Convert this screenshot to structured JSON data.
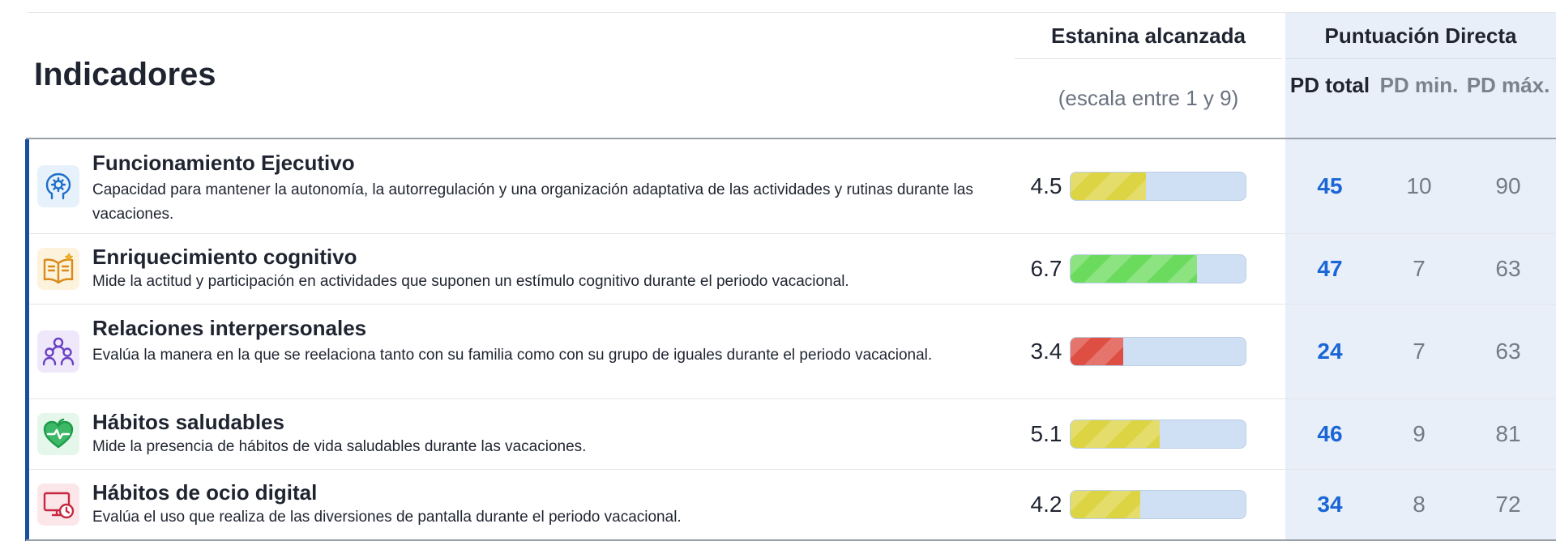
{
  "header": {
    "title": "Indicadores",
    "stanine_label": "Estanina alcanzada",
    "stanine_scale": "(escala entre 1 y 9)",
    "pd_label": "Puntuación Directa",
    "pd_total": "PD total",
    "pd_min": "PD min.",
    "pd_max": "PD máx."
  },
  "colors": {
    "accent_blue": "#1a4fa0",
    "pd_blue": "#1a66d6",
    "bar_track": "#cfe0f5",
    "yellow": "#dcd443",
    "green": "#6bdb5d",
    "red": "#de4e42"
  },
  "rows": [
    {
      "icon": "brain-gear-icon",
      "title": "Funcionamiento Ejecutivo",
      "description": "Capacidad para mantener la autonomía, la autorregulación y una organización adaptativa de las actividades y rutinas durante las vacaciones.",
      "score": "4.5",
      "fill_fraction": 0.43,
      "fill_color": "#dcd443",
      "pd_total": "45",
      "pd_min": "10",
      "pd_max": "90"
    },
    {
      "icon": "open-book-star-icon",
      "title": "Enriquecimiento cognitivo",
      "description": "Mide la actitud y participación en actividades que suponen un estímulo cognitivo durante el periodo vacacional.",
      "score": "6.7",
      "fill_fraction": 0.72,
      "fill_color": "#6bdb5d",
      "pd_total": "47",
      "pd_min": "7",
      "pd_max": "63"
    },
    {
      "icon": "people-group-icon",
      "title": "Relaciones interpersonales",
      "description": "Evalúa la manera en la que se reelaciona tanto con su familia como con su grupo de iguales durante el periodo vacacional.",
      "score": "3.4",
      "fill_fraction": 0.3,
      "fill_color": "#de4e42",
      "pd_total": "24",
      "pd_min": "7",
      "pd_max": "63"
    },
    {
      "icon": "heart-pulse-icon",
      "title": "Hábitos saludables",
      "description": "Mide la presencia de hábitos de vida saludables durante las vacaciones.",
      "score": "5.1",
      "fill_fraction": 0.51,
      "fill_color": "#dcd443",
      "pd_total": "46",
      "pd_min": "9",
      "pd_max": "81"
    },
    {
      "icon": "screen-clock-icon",
      "title": "Hábitos de ocio digital",
      "description": "Evalúa el uso que realiza de las diversiones de pantalla durante el periodo vacacional.",
      "score": "4.2",
      "fill_fraction": 0.4,
      "fill_color": "#dcd443",
      "pd_total": "34",
      "pd_min": "8",
      "pd_max": "72"
    }
  ]
}
